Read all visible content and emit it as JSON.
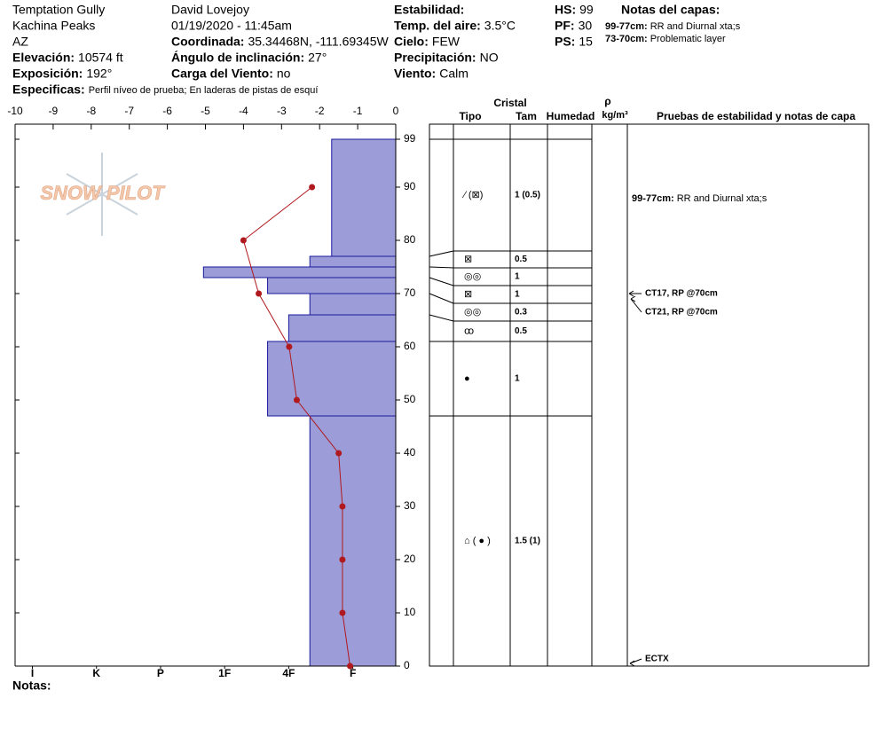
{
  "header": {
    "columns": [
      [
        {
          "text": "Temptation Gully"
        },
        {
          "text": "Kachina Peaks"
        },
        {
          "text": "AZ"
        },
        {
          "label": "Elevación:",
          "value": "10574 ft"
        },
        {
          "label": "Exposición:",
          "value": "192°"
        },
        {
          "label": "Especificas:",
          "value": "Perfil níveo de prueba; En laderas de pistas de esquí"
        }
      ],
      [
        {
          "text": "David Lovejoy"
        },
        {
          "text": "01/19/2020 - 11:45am"
        },
        {
          "label": "Coordinada:",
          "value": "35.34468N, -111.69345W"
        },
        {
          "label": "Ángulo de inclinación:",
          "value": "27°"
        },
        {
          "label": "Carga del Viento:",
          "value": "no"
        }
      ],
      [
        {
          "label": "Estabilidad:"
        },
        {
          "label": "Temp. del aire:",
          "value": "3.5°C"
        },
        {
          "label": "Cielo:",
          "value": "FEW"
        },
        {
          "label": "Precipitación:",
          "value": "NO"
        },
        {
          "label": "Viento:",
          "value": "Calm"
        }
      ],
      [
        {
          "label": "HS:",
          "value": "99"
        },
        {
          "label": "PF:",
          "value": "30"
        },
        {
          "label": "PS:",
          "value": "15"
        }
      ]
    ],
    "layer_notes_title": "Notas del capas:",
    "layer_notes": [
      {
        "label": "99-77cm:",
        "value": "RR and Diurnal xta;s"
      },
      {
        "label": "73-70cm:",
        "value": "Problematic layer"
      }
    ]
  },
  "chart_data": {
    "type": "snow-profile",
    "logo": "SNOW PILOT",
    "xlim": [
      -10,
      0
    ],
    "xticks": [
      -10,
      -9,
      -8,
      -7,
      -6,
      -5,
      -4,
      -3,
      -2,
      -1,
      0
    ],
    "ylim": [
      0,
      101
    ],
    "yticks": [
      0,
      10,
      20,
      30,
      40,
      50,
      60,
      70,
      80,
      90,
      99
    ],
    "hardness_lim": [
      0.33,
      6.27
    ],
    "hardness_ticks": [
      {
        "value": 6,
        "label": "I"
      },
      {
        "value": 5,
        "label": "K"
      },
      {
        "value": 4,
        "label": "P"
      },
      {
        "value": 3,
        "label": "1F"
      },
      {
        "value": 2,
        "label": "4F"
      },
      {
        "value": 1,
        "label": "F"
      }
    ],
    "bar_color": "#9c9cd8",
    "layers": [
      {
        "top": 99,
        "bottom": 77,
        "hardness": 1.33,
        "grain": "⁄ (⊠)",
        "size": "1 (0.5)"
      },
      {
        "top": 77,
        "bottom": 75,
        "hardness": 1.67,
        "grain": "⊠",
        "size": "0.5"
      },
      {
        "top": 75,
        "bottom": 73,
        "hardness": 3.33,
        "grain": "◎◎",
        "size": "1"
      },
      {
        "top": 73,
        "bottom": 70,
        "hardness": 2.33,
        "grain": "⊠",
        "size": "1"
      },
      {
        "top": 70,
        "bottom": 66,
        "hardness": 1.67,
        "grain": "◎◎",
        "size": "0.3"
      },
      {
        "top": 66,
        "bottom": 61,
        "hardness": 2.0,
        "grain": "ꝏ",
        "size": "0.5"
      },
      {
        "top": 61,
        "bottom": 47,
        "hardness": 2.33,
        "grain": "●",
        "size": "1"
      },
      {
        "top": 47,
        "bottom": 0,
        "hardness": 1.67,
        "grain": "⌂ ( ● )",
        "size": "1.5 (1)"
      }
    ],
    "temperature": {
      "color": "#b0191e",
      "depth": [
        90,
        80,
        70,
        60,
        50,
        40,
        30,
        20,
        10,
        0
      ],
      "values": [
        -2.2,
        -4.0,
        -3.6,
        -2.8,
        -2.6,
        -1.5,
        -1.4,
        -1.4,
        -1.4,
        -1.2
      ]
    },
    "notes_label": "Notas:"
  },
  "table": {
    "group": "Cristal",
    "columns": [
      "Tipo",
      "Tam",
      "Humedad"
    ],
    "density": "ρ",
    "density_unit": "kg/m³",
    "tests_title": "Pruebas de estabilidad y notas de capa",
    "tests": [
      "CT17, RP @70cm",
      "CT21, RP @70cm",
      "ECTX"
    ]
  }
}
